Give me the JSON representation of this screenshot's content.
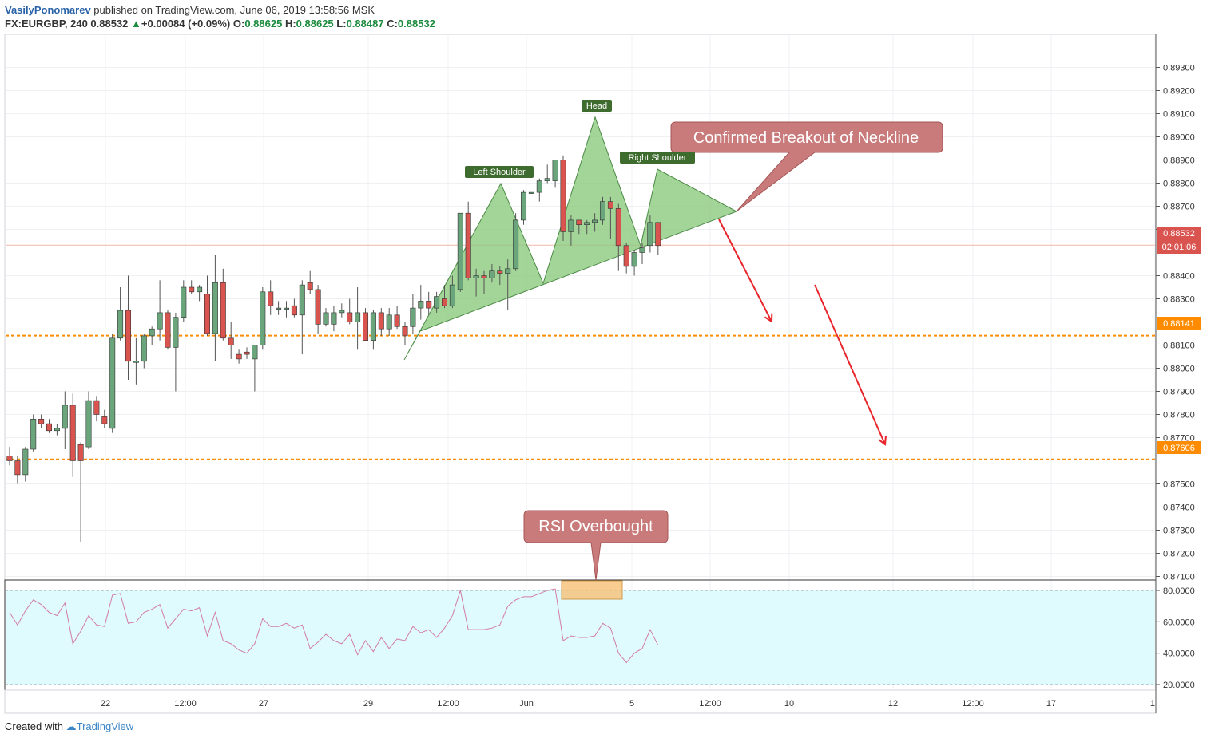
{
  "header": {
    "author": "VasilyPonomarev",
    "published_text": "published on TradingView.com, June 06, 2019 13:58:56 MSK",
    "symbol": "FX:EURGBP, 240",
    "last": "0.88532",
    "change_arrow": "▲",
    "change": "+0.00084 (+0.09%)",
    "o_label": "O:",
    "o_value": "0.88625",
    "h_label": "H:",
    "h_value": "0.88625",
    "l_label": "L:",
    "l_value": "0.88487",
    "c_label": "C:",
    "c_value": "0.88532"
  },
  "footer": {
    "created_with": "Created with",
    "brand": "TradingView"
  },
  "colors": {
    "up": "#6aa57c",
    "down": "#d9534f",
    "pattern_fill": "#8cc97e",
    "callout": "#c97a7a",
    "level": "#ff8c00",
    "rsi_line": "#d27ca3",
    "rsi_band": "#e0fbfe",
    "arrow": "#e8252b"
  },
  "annotations": {
    "head": "Head",
    "left_shoulder": "Left Shoulder",
    "right_shoulder": "Right Shoulder",
    "breakout": "Confirmed Breakout of Neckline",
    "rsi_overbought": "RSI Overbought"
  },
  "price_axis": {
    "ticks": [
      "0.89300",
      "0.89200",
      "0.89100",
      "0.89000",
      "0.88900",
      "0.88800",
      "0.88700",
      "0.88600",
      "0.88400",
      "0.88300",
      "0.88200",
      "0.88100",
      "0.88000",
      "0.87900",
      "0.87800",
      "0.87700",
      "0.87500",
      "0.87400",
      "0.87300",
      "0.87200",
      "0.87100"
    ],
    "current_price": "0.88532",
    "countdown": "02:01:06",
    "level_1": "0.88141",
    "level_2": "0.87606"
  },
  "rsi_axis": {
    "ticks": [
      "80.0000",
      "60.0000",
      "40.0000",
      "20.0000"
    ]
  },
  "time_axis": {
    "ticks": [
      "22",
      "12:00",
      "27",
      "29",
      "12:00",
      "Jun",
      "5",
      "12:00",
      "10",
      "12",
      "12:00",
      "17",
      "1"
    ]
  },
  "chart_data": {
    "type": "candlestick",
    "symbol": "FX:EURGBP",
    "interval": "240",
    "y_range": [
      0.8705,
      0.8935
    ],
    "candles": [
      {
        "o": 0.8762,
        "h": 0.8766,
        "l": 0.8758,
        "c": 0.876
      },
      {
        "o": 0.876,
        "h": 0.8762,
        "l": 0.875,
        "c": 0.8754
      },
      {
        "o": 0.8754,
        "h": 0.8766,
        "l": 0.8751,
        "c": 0.8765
      },
      {
        "o": 0.8765,
        "h": 0.878,
        "l": 0.8764,
        "c": 0.8778
      },
      {
        "o": 0.8778,
        "h": 0.878,
        "l": 0.8774,
        "c": 0.8776
      },
      {
        "o": 0.8776,
        "h": 0.8778,
        "l": 0.8772,
        "c": 0.8773
      },
      {
        "o": 0.8773,
        "h": 0.8776,
        "l": 0.8771,
        "c": 0.8774
      },
      {
        "o": 0.8774,
        "h": 0.879,
        "l": 0.8765,
        "c": 0.8784
      },
      {
        "o": 0.8784,
        "h": 0.8789,
        "l": 0.8753,
        "c": 0.876
      },
      {
        "o": 0.8767,
        "h": 0.8768,
        "l": 0.8725,
        "c": 0.876
      },
      {
        "o": 0.8766,
        "h": 0.879,
        "l": 0.8765,
        "c": 0.8786
      },
      {
        "o": 0.8786,
        "h": 0.8788,
        "l": 0.8777,
        "c": 0.878
      },
      {
        "o": 0.8779,
        "h": 0.8782,
        "l": 0.8774,
        "c": 0.8776
      },
      {
        "o": 0.8774,
        "h": 0.8815,
        "l": 0.8772,
        "c": 0.8813
      },
      {
        "o": 0.8813,
        "h": 0.8835,
        "l": 0.8812,
        "c": 0.8825
      },
      {
        "o": 0.8825,
        "h": 0.884,
        "l": 0.8795,
        "c": 0.8803
      },
      {
        "o": 0.8803,
        "h": 0.8813,
        "l": 0.8793,
        "c": 0.8803
      },
      {
        "o": 0.8803,
        "h": 0.8815,
        "l": 0.88,
        "c": 0.8814
      },
      {
        "o": 0.8814,
        "h": 0.8818,
        "l": 0.881,
        "c": 0.8817
      },
      {
        "o": 0.8817,
        "h": 0.8838,
        "l": 0.8812,
        "c": 0.8824
      },
      {
        "o": 0.8824,
        "h": 0.8825,
        "l": 0.8808,
        "c": 0.8809
      },
      {
        "o": 0.8809,
        "h": 0.8824,
        "l": 0.879,
        "c": 0.8822
      },
      {
        "o": 0.8822,
        "h": 0.8838,
        "l": 0.882,
        "c": 0.8835
      },
      {
        "o": 0.8835,
        "h": 0.8838,
        "l": 0.8832,
        "c": 0.8833
      },
      {
        "o": 0.8833,
        "h": 0.8836,
        "l": 0.8829,
        "c": 0.8835
      },
      {
        "o": 0.8832,
        "h": 0.884,
        "l": 0.8814,
        "c": 0.8815
      },
      {
        "o": 0.8815,
        "h": 0.8849,
        "l": 0.8803,
        "c": 0.8837
      },
      {
        "o": 0.8837,
        "h": 0.8843,
        "l": 0.8812,
        "c": 0.8813
      },
      {
        "o": 0.8813,
        "h": 0.882,
        "l": 0.8804,
        "c": 0.881
      },
      {
        "o": 0.8806,
        "h": 0.8808,
        "l": 0.8802,
        "c": 0.8804
      },
      {
        "o": 0.8807,
        "h": 0.8809,
        "l": 0.8804,
        "c": 0.8806
      },
      {
        "o": 0.8804,
        "h": 0.8809,
        "l": 0.879,
        "c": 0.881
      },
      {
        "o": 0.881,
        "h": 0.8835,
        "l": 0.8808,
        "c": 0.8833
      },
      {
        "o": 0.8833,
        "h": 0.8838,
        "l": 0.8823,
        "c": 0.8827
      },
      {
        "o": 0.8826,
        "h": 0.8829,
        "l": 0.8823,
        "c": 0.8826
      },
      {
        "o": 0.8826,
        "h": 0.8829,
        "l": 0.8822,
        "c": 0.8826
      },
      {
        "o": 0.8827,
        "h": 0.883,
        "l": 0.8822,
        "c": 0.8823
      },
      {
        "o": 0.8823,
        "h": 0.8838,
        "l": 0.8806,
        "c": 0.8836
      },
      {
        "o": 0.8837,
        "h": 0.8842,
        "l": 0.8832,
        "c": 0.8834
      },
      {
        "o": 0.8834,
        "h": 0.8836,
        "l": 0.8815,
        "c": 0.8819
      },
      {
        "o": 0.8819,
        "h": 0.8826,
        "l": 0.8818,
        "c": 0.8824
      },
      {
        "o": 0.8819,
        "h": 0.8827,
        "l": 0.8816,
        "c": 0.8824
      },
      {
        "o": 0.8824,
        "h": 0.8828,
        "l": 0.8822,
        "c": 0.8825
      },
      {
        "o": 0.8824,
        "h": 0.883,
        "l": 0.8819,
        "c": 0.882
      },
      {
        "o": 0.882,
        "h": 0.8835,
        "l": 0.8808,
        "c": 0.8824
      },
      {
        "o": 0.8824,
        "h": 0.8826,
        "l": 0.8812,
        "c": 0.8812
      },
      {
        "o": 0.8812,
        "h": 0.8825,
        "l": 0.8808,
        "c": 0.8824
      },
      {
        "o": 0.8824,
        "h": 0.8826,
        "l": 0.8814,
        "c": 0.8817
      },
      {
        "o": 0.8817,
        "h": 0.8826,
        "l": 0.8814,
        "c": 0.8823
      },
      {
        "o": 0.8823,
        "h": 0.8827,
        "l": 0.8817,
        "c": 0.8818
      },
      {
        "o": 0.8818,
        "h": 0.882,
        "l": 0.881,
        "c": 0.8814
      },
      {
        "o": 0.8818,
        "h": 0.8832,
        "l": 0.8815,
        "c": 0.8826
      },
      {
        "o": 0.8826,
        "h": 0.8836,
        "l": 0.8821,
        "c": 0.8829
      },
      {
        "o": 0.8829,
        "h": 0.8833,
        "l": 0.8823,
        "c": 0.8826
      },
      {
        "o": 0.8826,
        "h": 0.8833,
        "l": 0.8824,
        "c": 0.8831
      },
      {
        "o": 0.883,
        "h": 0.8836,
        "l": 0.8826,
        "c": 0.8827
      },
      {
        "o": 0.8827,
        "h": 0.884,
        "l": 0.8826,
        "c": 0.8836
      },
      {
        "o": 0.8834,
        "h": 0.8867,
        "l": 0.8833,
        "c": 0.8867
      },
      {
        "o": 0.8867,
        "h": 0.8872,
        "l": 0.8838,
        "c": 0.8839
      },
      {
        "o": 0.8839,
        "h": 0.8843,
        "l": 0.8831,
        "c": 0.884
      },
      {
        "o": 0.884,
        "h": 0.8842,
        "l": 0.8832,
        "c": 0.8839
      },
      {
        "o": 0.8839,
        "h": 0.8845,
        "l": 0.8837,
        "c": 0.8842
      },
      {
        "o": 0.8842,
        "h": 0.8844,
        "l": 0.8836,
        "c": 0.8841
      },
      {
        "o": 0.8841,
        "h": 0.8847,
        "l": 0.8825,
        "c": 0.8843
      },
      {
        "o": 0.8843,
        "h": 0.8867,
        "l": 0.8842,
        "c": 0.8864
      },
      {
        "o": 0.8864,
        "h": 0.8877,
        "l": 0.8862,
        "c": 0.8876
      },
      {
        "o": 0.8876,
        "h": 0.8876,
        "l": 0.8876,
        "c": 0.8876
      },
      {
        "o": 0.8876,
        "h": 0.8882,
        "l": 0.8872,
        "c": 0.8881
      },
      {
        "o": 0.8881,
        "h": 0.8888,
        "l": 0.888,
        "c": 0.8882
      },
      {
        "o": 0.8881,
        "h": 0.889,
        "l": 0.8878,
        "c": 0.889
      },
      {
        "o": 0.889,
        "h": 0.8892,
        "l": 0.8855,
        "c": 0.8859
      },
      {
        "o": 0.8859,
        "h": 0.8866,
        "l": 0.8853,
        "c": 0.8864
      },
      {
        "o": 0.8864,
        "h": 0.8864,
        "l": 0.8858,
        "c": 0.8862
      },
      {
        "o": 0.8862,
        "h": 0.8864,
        "l": 0.8858,
        "c": 0.8863
      },
      {
        "o": 0.8863,
        "h": 0.8867,
        "l": 0.8859,
        "c": 0.8864
      },
      {
        "o": 0.8864,
        "h": 0.8874,
        "l": 0.8862,
        "c": 0.8872
      },
      {
        "o": 0.8872,
        "h": 0.8874,
        "l": 0.8856,
        "c": 0.8869
      },
      {
        "o": 0.8869,
        "h": 0.8871,
        "l": 0.8842,
        "c": 0.8853
      },
      {
        "o": 0.8853,
        "h": 0.8854,
        "l": 0.8841,
        "c": 0.8844
      },
      {
        "o": 0.8844,
        "h": 0.8851,
        "l": 0.884,
        "c": 0.885
      },
      {
        "o": 0.885,
        "h": 0.8854,
        "l": 0.8845,
        "c": 0.8852
      },
      {
        "o": 0.8853,
        "h": 0.8866,
        "l": 0.885,
        "c": 0.8863
      },
      {
        "o": 0.8863,
        "h": 0.8863,
        "l": 0.8849,
        "c": 0.8853
      }
    ],
    "price_levels": [
      0.88141,
      0.87606
    ],
    "current_price": 0.88532,
    "rsi": {
      "ylim": [
        20,
        80
      ],
      "values": [
        66,
        58,
        67,
        74,
        71,
        66,
        64,
        72,
        46,
        54,
        64,
        58,
        57,
        77,
        78,
        59,
        60,
        66,
        68,
        71,
        56,
        62,
        68,
        67,
        69,
        51,
        66,
        48,
        46,
        42,
        40,
        46,
        62,
        57,
        57,
        59,
        56,
        58,
        43,
        47,
        52,
        48,
        46,
        52,
        39,
        48,
        41,
        50,
        43,
        49,
        48,
        57,
        53,
        55,
        50,
        56,
        64,
        80,
        55,
        55,
        55,
        56,
        58,
        70,
        74,
        76,
        76,
        78,
        80,
        81,
        48,
        51,
        50,
        50,
        51,
        59,
        56,
        40,
        34,
        40,
        43,
        55,
        45
      ]
    },
    "pattern": "head and shoulders"
  }
}
